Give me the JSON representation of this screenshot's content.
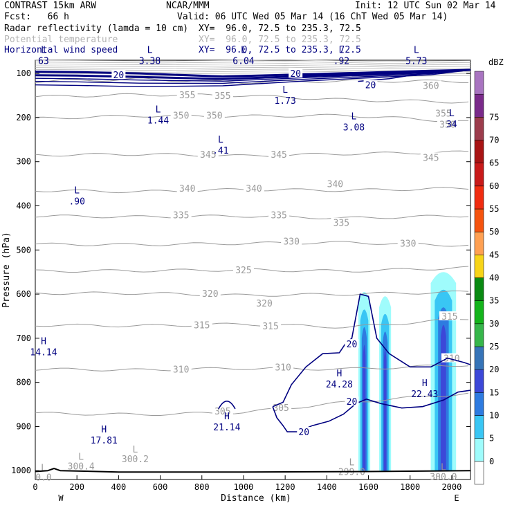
{
  "header": {
    "model": "CONTRAST 15km ARW",
    "org": "NCAR/MMM",
    "init": "Init: 12 UTC Sun 02 Mar 14",
    "fcst": "Fcst:   66 h",
    "valid": "Valid: 06 UTC Wed 05 Mar 14 (16 ChT Wed 05 Mar 14)",
    "field1": "Radar reflectivity (lamda = 10 cm)",
    "field1_xy": "XY=  96.0, 72.5 to 235.3, 72.5",
    "field2": "Potential temperature",
    "field2_xy": "XY=  96.0, 72.5 to 235.3, 72.5",
    "field3": "Horizontal wind speed",
    "field3_xy": "XY=  96.0, 72.5 to 235.3, 72.5"
  },
  "colors": {
    "wind": "#000080",
    "theta": "#9a9a9a",
    "terrain": "#000000"
  },
  "chart_data": {
    "type": "contour-cross-section",
    "xlabel": "Distance (km)",
    "ylabel": "Pressure (hPa)",
    "xlim": [
      0,
      2090
    ],
    "ylim": [
      1020,
      70
    ],
    "x_ticks": [
      0,
      200,
      400,
      600,
      800,
      1000,
      1200,
      1400,
      1600,
      1800,
      2000
    ],
    "y_ticks": [
      100,
      200,
      300,
      400,
      500,
      600,
      700,
      800,
      900,
      1000
    ],
    "x_end_labels": {
      "left": "W",
      "right": "E"
    },
    "colorbar": {
      "unit": "dBZ",
      "levels": [
        0,
        5,
        10,
        15,
        20,
        25,
        30,
        35,
        40,
        45,
        50,
        55,
        60,
        65,
        70,
        75
      ],
      "colors": [
        "#ffffff",
        "#9ffcfc",
        "#39c6f4",
        "#2e7be0",
        "#3c48d8",
        "#3674b8",
        "#36b64a",
        "#14b41c",
        "#0a8a12",
        "#f7d418",
        "#ffa052",
        "#f5530e",
        "#f02c10",
        "#c81a1a",
        "#a81414",
        "#9c3c4c",
        "#7a2a8a",
        "#a874c0"
      ]
    },
    "theta_isentropes": [
      {
        "value": 305,
        "p_at": [
          [
            0,
            870
          ],
          [
            500,
            873
          ],
          [
            1000,
            868
          ],
          [
            1500,
            845
          ],
          [
            2090,
            825
          ]
        ],
        "labels": [
          {
            "x": 900,
            "p": 865,
            "text": "305"
          },
          {
            "x": 1180,
            "p": 857,
            "text": "305"
          }
        ]
      },
      {
        "value": 310,
        "p_at": [
          [
            0,
            770
          ],
          [
            500,
            772
          ],
          [
            1000,
            768
          ],
          [
            1500,
            770
          ],
          [
            2090,
            760
          ]
        ],
        "labels": [
          {
            "x": 700,
            "p": 770,
            "text": "310"
          },
          {
            "x": 1190,
            "p": 765,
            "text": "310"
          },
          {
            "x": 2000,
            "p": 745,
            "text": "310"
          }
        ]
      },
      {
        "value": 315,
        "p_at": [
          [
            0,
            670
          ],
          [
            500,
            672
          ],
          [
            1000,
            668
          ],
          [
            1500,
            675
          ],
          [
            2090,
            655
          ]
        ],
        "labels": [
          {
            "x": 800,
            "p": 670,
            "text": "315"
          },
          {
            "x": 1130,
            "p": 672,
            "text": "315"
          },
          {
            "x": 1990,
            "p": 650,
            "text": "315"
          }
        ]
      },
      {
        "value": 320,
        "p_at": [
          [
            0,
            598
          ],
          [
            500,
            598
          ],
          [
            1000,
            603
          ],
          [
            1500,
            600
          ],
          [
            2090,
            595
          ]
        ],
        "labels": [
          {
            "x": 840,
            "p": 598,
            "text": "320"
          },
          {
            "x": 1100,
            "p": 620,
            "text": "320"
          }
        ]
      },
      {
        "value": 325,
        "p_at": [
          [
            0,
            548
          ],
          [
            500,
            547
          ],
          [
            1000,
            545
          ],
          [
            1500,
            548
          ],
          [
            2090,
            540
          ]
        ],
        "labels": [
          {
            "x": 1000,
            "p": 545,
            "text": "325"
          }
        ]
      },
      {
        "value": 330,
        "p_at": [
          [
            0,
            487
          ],
          [
            500,
            488
          ],
          [
            1000,
            485
          ],
          [
            1500,
            483
          ],
          [
            2090,
            490
          ]
        ],
        "labels": [
          {
            "x": 1230,
            "p": 480,
            "text": "330"
          },
          {
            "x": 1790,
            "p": 485,
            "text": "330"
          }
        ]
      },
      {
        "value": 335,
        "p_at": [
          [
            0,
            423
          ],
          [
            500,
            425
          ],
          [
            1000,
            423
          ],
          [
            1500,
            428
          ],
          [
            2090,
            422
          ]
        ],
        "labels": [
          {
            "x": 700,
            "p": 420,
            "text": "335"
          },
          {
            "x": 1170,
            "p": 420,
            "text": "335"
          },
          {
            "x": 1470,
            "p": 438,
            "text": "335"
          }
        ]
      },
      {
        "value": 340,
        "p_at": [
          [
            0,
            365
          ],
          [
            500,
            368
          ],
          [
            1000,
            363
          ],
          [
            1500,
            365
          ],
          [
            2090,
            360
          ]
        ],
        "labels": [
          {
            "x": 730,
            "p": 360,
            "text": "340"
          },
          {
            "x": 1050,
            "p": 360,
            "text": "340"
          },
          {
            "x": 1440,
            "p": 350,
            "text": "340"
          }
        ]
      },
      {
        "value": 345,
        "p_at": [
          [
            0,
            285
          ],
          [
            500,
            283
          ],
          [
            1000,
            287
          ],
          [
            1500,
            282
          ],
          [
            2090,
            278
          ]
        ],
        "labels": [
          {
            "x": 830,
            "p": 283,
            "text": "345"
          },
          {
            "x": 1170,
            "p": 283,
            "text": "345"
          },
          {
            "x": 1900,
            "p": 290,
            "text": "345"
          }
        ]
      },
      {
        "value": 350,
        "p_at": [
          [
            0,
            202
          ],
          [
            500,
            196
          ],
          [
            1000,
            197
          ],
          [
            1500,
            195
          ],
          [
            2090,
            210
          ]
        ],
        "labels": [
          {
            "x": 700,
            "p": 195,
            "text": "350"
          },
          {
            "x": 860,
            "p": 195,
            "text": "350"
          },
          {
            "x": 1980,
            "p": 215,
            "text": "350"
          }
        ]
      },
      {
        "value": 355,
        "p_at": [
          [
            0,
            153
          ],
          [
            500,
            148
          ],
          [
            1000,
            150
          ],
          [
            1500,
            160
          ],
          [
            2090,
            165
          ]
        ],
        "labels": [
          {
            "x": 730,
            "p": 148,
            "text": "355"
          },
          {
            "x": 900,
            "p": 150,
            "text": "355"
          },
          {
            "x": 1960,
            "p": 190,
            "text": "355"
          }
        ]
      },
      {
        "value": 360,
        "p_at": [
          [
            0,
            118
          ],
          [
            500,
            113
          ],
          [
            1000,
            120
          ],
          [
            1500,
            117
          ],
          [
            2090,
            118
          ]
        ],
        "labels": [
          {
            "x": 1900,
            "p": 127,
            "text": "360"
          }
        ]
      }
    ],
    "wind_speed_label": "20",
    "wind_20_labels": [
      {
        "x": 400,
        "p": 103,
        "text": "20"
      },
      {
        "x": 1250,
        "p": 100,
        "text": "20"
      },
      {
        "x": 1610,
        "p": 126,
        "text": "20"
      },
      {
        "x": 1520,
        "p": 713,
        "text": "20"
      },
      {
        "x": 1520,
        "p": 843,
        "text": "20"
      },
      {
        "x": 1290,
        "p": 912,
        "text": "20"
      }
    ],
    "wind_extrema": [
      {
        "type": "L",
        "x": 550,
        "p": 60,
        "value": "3.38"
      },
      {
        "type": "L",
        "x": 1000,
        "p": 60,
        "value": "6.04"
      },
      {
        "type": "L",
        "x": 1470,
        "p": 60,
        "value": ".92"
      },
      {
        "type": "L",
        "x": 1830,
        "p": 60,
        "value": "5.73"
      },
      {
        "type": "L",
        "x": 0,
        "p": 60,
        "value": "63"
      },
      {
        "type": "L",
        "x": 1200,
        "p": 150,
        "value": "1.73"
      },
      {
        "type": "L",
        "x": 590,
        "p": 195,
        "value": "1.44"
      },
      {
        "type": "L",
        "x": 1530,
        "p": 210,
        "value": "3.08"
      },
      {
        "type": "L",
        "x": 2000,
        "p": 203,
        "value": "34"
      },
      {
        "type": "L",
        "x": 890,
        "p": 263,
        "value": ".41"
      },
      {
        "type": "L",
        "x": 200,
        "p": 378,
        "value": ".90"
      },
      {
        "type": "H",
        "x": 0,
        "p": 720,
        "value": "14.14"
      },
      {
        "type": "H",
        "x": 920,
        "p": 890,
        "value": "21.14"
      },
      {
        "type": "H",
        "x": 330,
        "p": 920,
        "value": "17.81"
      },
      {
        "type": "H",
        "x": 1460,
        "p": 793,
        "value": "24.28"
      },
      {
        "type": "H",
        "x": 1870,
        "p": 815,
        "value": "22.43"
      }
    ],
    "theta_extrema": [
      {
        "type": "L",
        "x": 220,
        "p": 985,
        "value": "300.4"
      },
      {
        "type": "L",
        "x": 480,
        "p": 968,
        "value": "300.2"
      },
      {
        "type": "L",
        "x": 0,
        "p": 1010,
        "value": "0.0"
      },
      {
        "type": "L",
        "x": 1520,
        "p": 997,
        "value": "299.0"
      },
      {
        "type": "L",
        "x": 1960,
        "p": 1008,
        "value": "300.0"
      }
    ],
    "reflectivity_cells": [
      {
        "x": 1580,
        "p_top": 590,
        "p_bot": 1000,
        "max_dbz": 20
      },
      {
        "x": 1680,
        "p_top": 600,
        "p_bot": 1000,
        "max_dbz": 20
      },
      {
        "x": 1960,
        "p_top": 545,
        "p_bot": 1000,
        "max_dbz": 20
      }
    ]
  }
}
